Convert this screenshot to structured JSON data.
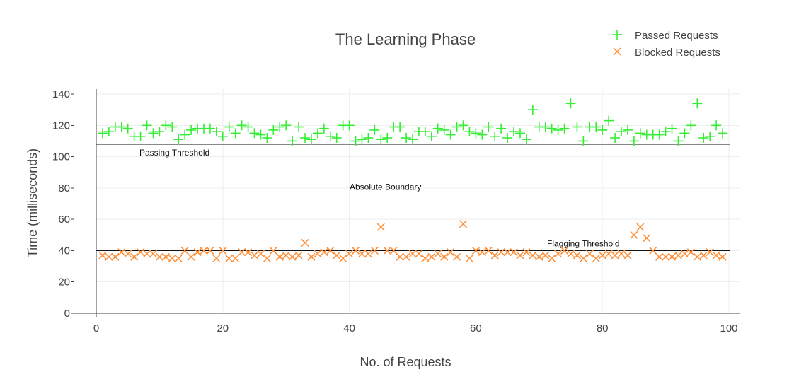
{
  "chart_data": {
    "type": "scatter",
    "title": "The Learning Phase",
    "xlabel": "No. of Requests",
    "ylabel": "Time (milliseconds)",
    "xlim": [
      0,
      100
    ],
    "ylim": [
      0,
      140
    ],
    "x_ticks": [
      0,
      20,
      40,
      60,
      80,
      100
    ],
    "y_ticks": [
      0,
      20,
      40,
      60,
      80,
      100,
      120,
      140
    ],
    "grid": true,
    "legend_position": "top-right",
    "series": [
      {
        "name": "Passed Requests",
        "marker": "cross",
        "color": "#33ee33",
        "x": [
          1,
          2,
          3,
          4,
          5,
          6,
          7,
          8,
          9,
          10,
          11,
          12,
          13,
          14,
          15,
          16,
          17,
          18,
          19,
          20,
          21,
          22,
          23,
          24,
          25,
          26,
          27,
          28,
          29,
          30,
          31,
          32,
          33,
          34,
          35,
          36,
          37,
          38,
          39,
          40,
          41,
          42,
          43,
          44,
          45,
          46,
          47,
          48,
          49,
          50,
          51,
          52,
          53,
          54,
          55,
          56,
          57,
          58,
          59,
          60,
          61,
          62,
          63,
          64,
          65,
          66,
          67,
          68,
          69,
          70,
          71,
          72,
          73,
          74,
          75,
          76,
          77,
          78,
          79,
          80,
          81,
          82,
          83,
          84,
          85,
          86,
          87,
          88,
          89,
          90,
          91,
          92,
          93,
          94,
          95,
          96,
          97,
          98,
          99
        ],
        "y": [
          115,
          116,
          119,
          119,
          118,
          113,
          113,
          120,
          115,
          116,
          120,
          119,
          111,
          114,
          117,
          118,
          118,
          118,
          116,
          113,
          119,
          115,
          120,
          119,
          115,
          114,
          112,
          117,
          119,
          120,
          110,
          119,
          112,
          111,
          115,
          118,
          113,
          112,
          120,
          120,
          110,
          111,
          112,
          117,
          111,
          112,
          119,
          119,
          112,
          111,
          116,
          116,
          113,
          118,
          117,
          114,
          119,
          120,
          116,
          115,
          114,
          119,
          113,
          118,
          112,
          116,
          115,
          111,
          130,
          119,
          119,
          118,
          117,
          118,
          134,
          119,
          110,
          119,
          119,
          117,
          123,
          112,
          116,
          117,
          110,
          115,
          114,
          114,
          114,
          116,
          118,
          110,
          115,
          120,
          134,
          112,
          113,
          120,
          115
        ]
      },
      {
        "name": "Blocked Requests",
        "marker": "x",
        "color": "#ff8c33",
        "x": [
          1,
          2,
          3,
          4,
          5,
          6,
          7,
          8,
          9,
          10,
          11,
          12,
          13,
          14,
          15,
          16,
          17,
          18,
          19,
          20,
          21,
          22,
          23,
          24,
          25,
          26,
          27,
          28,
          29,
          30,
          31,
          32,
          33,
          34,
          35,
          36,
          37,
          38,
          39,
          40,
          41,
          42,
          43,
          44,
          45,
          46,
          47,
          48,
          49,
          50,
          51,
          52,
          53,
          54,
          55,
          56,
          57,
          58,
          59,
          60,
          61,
          62,
          63,
          64,
          65,
          66,
          67,
          68,
          69,
          70,
          71,
          72,
          73,
          74,
          75,
          76,
          77,
          78,
          79,
          80,
          81,
          82,
          83,
          84,
          85,
          86,
          87,
          88,
          89,
          90,
          91,
          92,
          93,
          94,
          95,
          96,
          97,
          98,
          99
        ],
        "y": [
          37,
          36,
          36,
          39,
          38,
          36,
          39,
          38,
          38,
          36,
          36,
          35,
          35,
          40,
          36,
          39,
          40,
          40,
          35,
          40,
          35,
          35,
          39,
          39,
          37,
          38,
          35,
          40,
          36,
          37,
          36,
          37,
          45,
          36,
          38,
          39,
          40,
          37,
          35,
          38,
          40,
          38,
          38,
          40,
          55,
          40,
          40,
          36,
          36,
          38,
          38,
          35,
          36,
          38,
          36,
          39,
          36,
          57,
          35,
          40,
          39,
          40,
          37,
          39,
          39,
          39,
          37,
          39,
          37,
          36,
          37,
          35,
          38,
          40,
          38,
          37,
          35,
          38,
          35,
          37,
          38,
          37,
          38,
          37,
          50,
          55,
          48,
          40,
          36,
          36,
          36,
          37,
          38,
          39,
          36,
          37,
          39,
          37,
          36
        ]
      }
    ],
    "reference_lines": [
      {
        "label": "Passing Threshold",
        "y": 108,
        "x_range": [
          0,
          100
        ]
      },
      {
        "label": "Absolute Boundary",
        "y": 76,
        "x_range": [
          0,
          100
        ]
      },
      {
        "label": "Flagging Threshold",
        "y": 40,
        "x_range": [
          0,
          100
        ]
      }
    ]
  }
}
